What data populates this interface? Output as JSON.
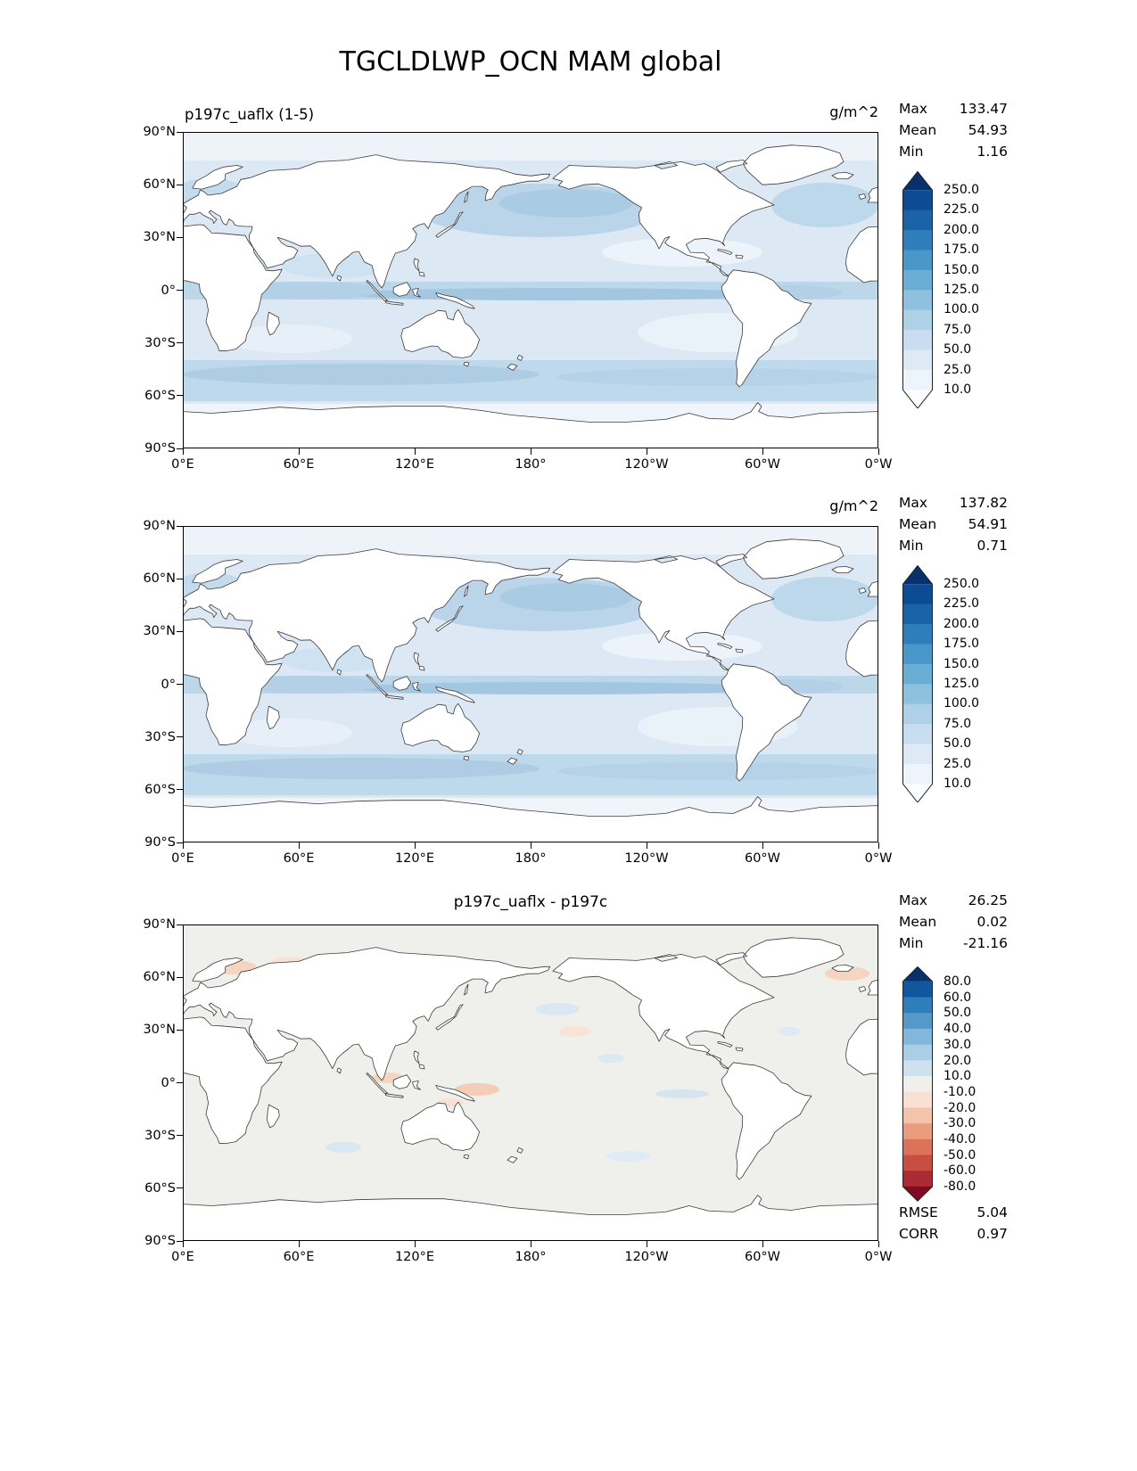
{
  "title": "TGCLDLWP_OCN MAM global",
  "axes": {
    "lat_ticks": [
      "90°N",
      "60°N",
      "30°N",
      "0°",
      "30°S",
      "60°S",
      "90°S"
    ],
    "lon_ticks": [
      "0°E",
      "60°E",
      "120°E",
      "180°",
      "120°W",
      "60°W",
      "0°W"
    ]
  },
  "panels": [
    {
      "title": "p197c_uaflx (1-5)",
      "units": "g/m^2",
      "stats": [
        {
          "label": "Max",
          "value": "133.47"
        },
        {
          "label": "Mean",
          "value": "54.93"
        },
        {
          "label": "Min",
          "value": "1.16"
        }
      ],
      "colorbar": {
        "ticks": [
          "250.0",
          "225.0",
          "200.0",
          "175.0",
          "150.0",
          "125.0",
          "100.0",
          "75.0",
          "50.0",
          "25.0",
          "10.0"
        ],
        "colors": [
          "#08306b",
          "#0b4c94",
          "#1b63a8",
          "#2e7ebc",
          "#4a97ca",
          "#6aaed6",
          "#8dc1dd",
          "#aed1e7",
          "#c8def0",
          "#dde9f5",
          "#eef4fb",
          "#fbfdff"
        ]
      }
    },
    {
      "title": "",
      "units": "g/m^2",
      "stats": [
        {
          "label": "Max",
          "value": "137.82"
        },
        {
          "label": "Mean",
          "value": "54.91"
        },
        {
          "label": "Min",
          "value": "0.71"
        }
      ],
      "colorbar": {
        "ticks": [
          "250.0",
          "225.0",
          "200.0",
          "175.0",
          "150.0",
          "125.0",
          "100.0",
          "75.0",
          "50.0",
          "25.0",
          "10.0"
        ],
        "colors": [
          "#08306b",
          "#0b4c94",
          "#1b63a8",
          "#2e7ebc",
          "#4a97ca",
          "#6aaed6",
          "#8dc1dd",
          "#aed1e7",
          "#c8def0",
          "#dde9f5",
          "#eef4fb",
          "#fbfdff"
        ]
      }
    },
    {
      "title": "p197c_uaflx - p197c",
      "units": "",
      "stats": [
        {
          "label": "Max",
          "value": "26.25"
        },
        {
          "label": "Mean",
          "value": "0.02"
        },
        {
          "label": "Min",
          "value": "-21.16"
        }
      ],
      "extra": [
        {
          "label": "RMSE",
          "value": "5.04"
        },
        {
          "label": "CORR",
          "value": "0.97"
        }
      ],
      "colorbar": {
        "ticks": [
          "80.0",
          "60.0",
          "50.0",
          "40.0",
          "30.0",
          "20.0",
          "10.0",
          "-10.0",
          "-20.0",
          "-30.0",
          "-40.0",
          "-50.0",
          "-60.0",
          "-80.0"
        ],
        "colors": [
          "#08306b",
          "#1057a0",
          "#2e7ebc",
          "#5499c7",
          "#80b7da",
          "#a9cee5",
          "#cfe0ef",
          "#f1efec",
          "#f8e0d2",
          "#f3c3ab",
          "#ea9d7e",
          "#dc7359",
          "#c84d42",
          "#ab2b33",
          "#7f0b23"
        ]
      }
    }
  ],
  "chart_data": {
    "type": "heatmap",
    "subtype": "global latitude-longitude filled-contour maps (3 stacked panels)",
    "title": "TGCLDLWP_OCN MAM global",
    "maps": [
      {
        "name": "p197c_uaflx (1-5)",
        "units": "g/m^2",
        "stats": {
          "max": 133.47,
          "mean": 54.93,
          "min": 1.16
        },
        "contour_levels": [
          10,
          25,
          50,
          75,
          100,
          125,
          150,
          175,
          200,
          225,
          250
        ],
        "palette": "white-to-dark-blue sequential, land masked white"
      },
      {
        "name": "p197c",
        "units": "g/m^2",
        "stats": {
          "max": 137.82,
          "mean": 54.91,
          "min": 0.71
        },
        "contour_levels": [
          10,
          25,
          50,
          75,
          100,
          125,
          150,
          175,
          200,
          225,
          250
        ],
        "palette": "white-to-dark-blue sequential, land masked white"
      },
      {
        "name": "p197c_uaflx - p197c",
        "units": "g/m^2",
        "stats": {
          "max": 26.25,
          "mean": 0.02,
          "min": -21.16,
          "rmse": 5.04,
          "corr": 0.97
        },
        "contour_levels": [
          -80,
          -60,
          -50,
          -40,
          -30,
          -20,
          -10,
          10,
          20,
          30,
          40,
          50,
          60,
          80
        ],
        "palette": "blue-white-red diverging, mostly near-zero (pale gray) everywhere"
      }
    ],
    "x_axis": {
      "ticks": [
        "0°E",
        "60°E",
        "120°E",
        "180°",
        "120°W",
        "60°W",
        "0°W"
      ],
      "range_deg": [
        0,
        360
      ]
    },
    "y_axis": {
      "ticks": [
        "90°N",
        "60°N",
        "30°N",
        "0°",
        "30°S",
        "60°S",
        "90°S"
      ],
      "range_deg": [
        90,
        -90
      ]
    },
    "legend_position": "vertical colorbar right of each panel with pointed over/under ends",
    "grid": false
  }
}
